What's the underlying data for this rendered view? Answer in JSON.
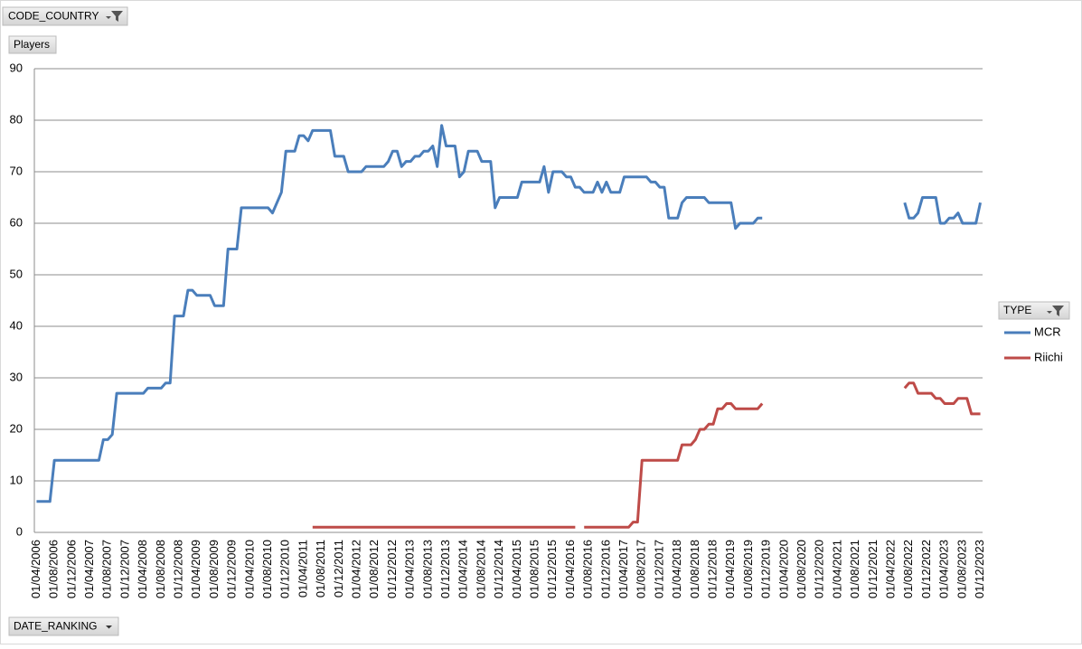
{
  "chart_data": {
    "type": "line",
    "filter_field": "CODE_COUNTRY",
    "value_field": "Players",
    "legend_title": "TYPE",
    "axis_field": "DATE_RANKING",
    "categories": [
      "01/04/2006",
      null,
      null,
      null,
      "01/08/2006",
      null,
      null,
      null,
      "01/12/2006",
      null,
      null,
      null,
      "01/04/2007",
      null,
      null,
      null,
      "01/08/2007",
      null,
      null,
      null,
      "01/12/2007",
      null,
      null,
      null,
      "01/04/2008",
      null,
      null,
      null,
      "01/08/2008",
      null,
      null,
      null,
      "01/12/2008",
      null,
      null,
      null,
      "01/04/2009",
      null,
      null,
      null,
      "01/08/2009",
      null,
      null,
      null,
      "01/12/2009",
      null,
      null,
      null,
      "01/04/2010",
      null,
      null,
      null,
      "01/08/2010",
      null,
      null,
      null,
      "01/12/2010",
      null,
      null,
      null,
      "01/04/2011",
      null,
      null,
      null,
      "01/08/2011",
      null,
      null,
      null,
      "01/12/2011",
      null,
      null,
      null,
      "01/04/2012",
      null,
      null,
      null,
      "01/08/2012",
      null,
      null,
      null,
      "01/12/2012",
      null,
      null,
      null,
      "01/04/2013",
      null,
      null,
      null,
      "01/08/2013",
      null,
      null,
      null,
      "01/12/2013",
      null,
      null,
      null,
      "01/04/2014",
      null,
      null,
      null,
      "01/08/2014",
      null,
      null,
      null,
      "01/12/2014",
      null,
      null,
      null,
      "01/04/2015",
      null,
      null,
      null,
      "01/08/2015",
      null,
      null,
      null,
      "01/12/2015",
      null,
      null,
      null,
      "01/04/2016",
      null,
      null,
      null,
      "01/08/2016",
      null,
      null,
      null,
      "01/12/2016",
      null,
      null,
      null,
      "01/04/2017",
      null,
      null,
      null,
      "01/08/2017",
      null,
      null,
      null,
      "01/12/2017",
      null,
      null,
      null,
      "01/04/2018",
      null,
      null,
      null,
      "01/08/2018",
      null,
      null,
      null,
      "01/12/2018",
      null,
      null,
      null,
      "01/04/2019",
      null,
      null,
      null,
      "01/08/2019",
      null,
      null,
      null,
      "01/12/2019",
      null,
      null,
      null,
      "01/04/2020",
      null,
      null,
      null,
      "01/08/2020",
      null,
      null,
      null,
      "01/12/2020",
      null,
      null,
      null,
      "01/04/2021",
      null,
      null,
      null,
      "01/08/2021",
      null,
      null,
      null,
      "01/12/2021",
      null,
      null,
      null,
      "01/04/2022",
      null,
      null,
      null,
      "01/08/2022",
      null,
      null,
      null,
      "01/12/2022",
      null,
      null,
      null,
      "01/04/2023",
      null,
      null,
      null,
      "01/08/2023",
      null,
      null,
      null,
      "01/12/2023"
    ],
    "series": [
      {
        "name": "MCR",
        "color": "#4a7ebb",
        "values": [
          6,
          6,
          6,
          6,
          14,
          14,
          14,
          14,
          14,
          14,
          14,
          14,
          14,
          14,
          14,
          18,
          18,
          19,
          27,
          27,
          27,
          27,
          27,
          27,
          27,
          28,
          28,
          28,
          28,
          29,
          29,
          42,
          42,
          42,
          47,
          47,
          46,
          46,
          46,
          46,
          44,
          44,
          44,
          55,
          55,
          55,
          63,
          63,
          63,
          63,
          63,
          63,
          63,
          62,
          64,
          66,
          74,
          74,
          74,
          77,
          77,
          76,
          78,
          78,
          78,
          78,
          78,
          73,
          73,
          73,
          70,
          70,
          70,
          70,
          71,
          71,
          71,
          71,
          71,
          72,
          74,
          74,
          71,
          72,
          72,
          73,
          73,
          74,
          74,
          75,
          71,
          79,
          75,
          75,
          75,
          69,
          70,
          74,
          74,
          74,
          72,
          72,
          72,
          63,
          65,
          65,
          65,
          65,
          65,
          68,
          68,
          68,
          68,
          68,
          71,
          66,
          70,
          70,
          70,
          69,
          69,
          67,
          67,
          66,
          66,
          66,
          68,
          66,
          68,
          66,
          66,
          66,
          69,
          69,
          69,
          69,
          69,
          69,
          68,
          68,
          67,
          67,
          61,
          61,
          61,
          64,
          65,
          65,
          65,
          65,
          65,
          64,
          64,
          64,
          64,
          64,
          64,
          59,
          60,
          60,
          60,
          60,
          61,
          61,
          null,
          null,
          null,
          null,
          null,
          null,
          null,
          null,
          null,
          null,
          null,
          null,
          null,
          null,
          null,
          null,
          null,
          null,
          null,
          null,
          null,
          null,
          null,
          null,
          null,
          null,
          null,
          null,
          null,
          null,
          null,
          64,
          61,
          61,
          62,
          65,
          65,
          65,
          65,
          60,
          60,
          61,
          61,
          62,
          60,
          60,
          60,
          60,
          64
        ]
      },
      {
        "name": "Riichi",
        "color": "#be4b48",
        "values": [
          null,
          null,
          null,
          null,
          null,
          null,
          null,
          null,
          null,
          null,
          null,
          null,
          null,
          null,
          null,
          null,
          null,
          null,
          null,
          null,
          null,
          null,
          null,
          null,
          null,
          null,
          null,
          null,
          null,
          null,
          null,
          null,
          null,
          null,
          null,
          null,
          null,
          null,
          null,
          null,
          null,
          null,
          null,
          null,
          null,
          null,
          null,
          null,
          null,
          null,
          null,
          null,
          null,
          null,
          null,
          null,
          null,
          null,
          null,
          null,
          null,
          null,
          1,
          1,
          1,
          1,
          1,
          1,
          1,
          1,
          1,
          1,
          1,
          1,
          1,
          1,
          1,
          1,
          1,
          1,
          1,
          1,
          1,
          1,
          1,
          1,
          1,
          1,
          1,
          1,
          1,
          1,
          1,
          1,
          1,
          1,
          1,
          1,
          1,
          1,
          1,
          1,
          1,
          1,
          1,
          1,
          1,
          1,
          1,
          1,
          1,
          1,
          1,
          1,
          1,
          1,
          1,
          1,
          1,
          1,
          1,
          1,
          null,
          1,
          1,
          1,
          1,
          1,
          1,
          1,
          1,
          1,
          1,
          1,
          2,
          2,
          14,
          14,
          14,
          14,
          14,
          14,
          14,
          14,
          14,
          17,
          17,
          17,
          18,
          20,
          20,
          21,
          21,
          24,
          24,
          25,
          25,
          24,
          24,
          24,
          24,
          24,
          24,
          25,
          null,
          null,
          null,
          null,
          null,
          null,
          null,
          null,
          null,
          null,
          null,
          null,
          null,
          null,
          null,
          null,
          null,
          null,
          null,
          null,
          null,
          null,
          null,
          null,
          null,
          null,
          null,
          null,
          null,
          null,
          null,
          28,
          29,
          29,
          27,
          27,
          27,
          27,
          26,
          26,
          25,
          25,
          25,
          26,
          26,
          26,
          23,
          23,
          23
        ]
      }
    ],
    "ylim": [
      0,
      90
    ],
    "yticks": [
      0,
      10,
      20,
      30,
      40,
      50,
      60,
      70,
      80,
      90
    ],
    "grid": true,
    "legend": "right"
  }
}
